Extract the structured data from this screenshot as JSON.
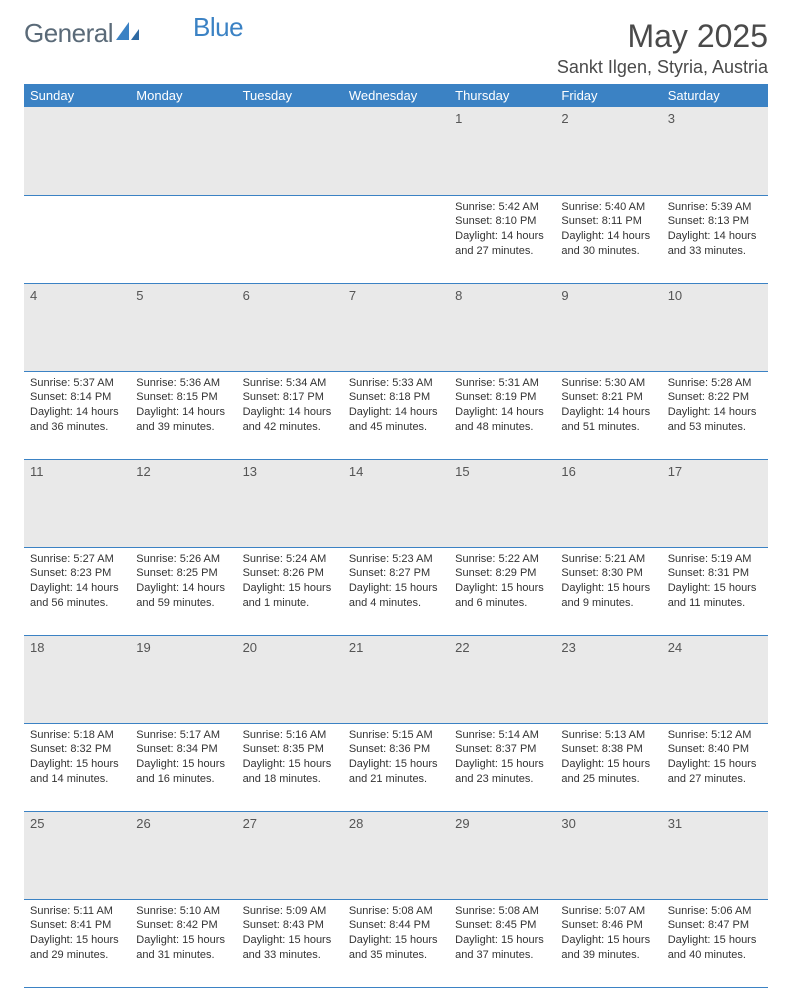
{
  "logo": {
    "text1": "General",
    "text2": "Blue"
  },
  "title": "May 2025",
  "location": "Sankt Ilgen, Styria, Austria",
  "colors": {
    "header_bg": "#3b82c4",
    "header_text": "#ffffff",
    "daynum_bg": "#e9e9e9",
    "border": "#3b82c4",
    "body_text": "#333333",
    "title_text": "#4a4a4a"
  },
  "weekdays": [
    "Sunday",
    "Monday",
    "Tuesday",
    "Wednesday",
    "Thursday",
    "Friday",
    "Saturday"
  ],
  "weeks": [
    [
      null,
      null,
      null,
      null,
      {
        "n": "1",
        "sr": "5:42 AM",
        "ss": "8:10 PM",
        "dl": "14 hours and 27 minutes."
      },
      {
        "n": "2",
        "sr": "5:40 AM",
        "ss": "8:11 PM",
        "dl": "14 hours and 30 minutes."
      },
      {
        "n": "3",
        "sr": "5:39 AM",
        "ss": "8:13 PM",
        "dl": "14 hours and 33 minutes."
      }
    ],
    [
      {
        "n": "4",
        "sr": "5:37 AM",
        "ss": "8:14 PM",
        "dl": "14 hours and 36 minutes."
      },
      {
        "n": "5",
        "sr": "5:36 AM",
        "ss": "8:15 PM",
        "dl": "14 hours and 39 minutes."
      },
      {
        "n": "6",
        "sr": "5:34 AM",
        "ss": "8:17 PM",
        "dl": "14 hours and 42 minutes."
      },
      {
        "n": "7",
        "sr": "5:33 AM",
        "ss": "8:18 PM",
        "dl": "14 hours and 45 minutes."
      },
      {
        "n": "8",
        "sr": "5:31 AM",
        "ss": "8:19 PM",
        "dl": "14 hours and 48 minutes."
      },
      {
        "n": "9",
        "sr": "5:30 AM",
        "ss": "8:21 PM",
        "dl": "14 hours and 51 minutes."
      },
      {
        "n": "10",
        "sr": "5:28 AM",
        "ss": "8:22 PM",
        "dl": "14 hours and 53 minutes."
      }
    ],
    [
      {
        "n": "11",
        "sr": "5:27 AM",
        "ss": "8:23 PM",
        "dl": "14 hours and 56 minutes."
      },
      {
        "n": "12",
        "sr": "5:26 AM",
        "ss": "8:25 PM",
        "dl": "14 hours and 59 minutes."
      },
      {
        "n": "13",
        "sr": "5:24 AM",
        "ss": "8:26 PM",
        "dl": "15 hours and 1 minute."
      },
      {
        "n": "14",
        "sr": "5:23 AM",
        "ss": "8:27 PM",
        "dl": "15 hours and 4 minutes."
      },
      {
        "n": "15",
        "sr": "5:22 AM",
        "ss": "8:29 PM",
        "dl": "15 hours and 6 minutes."
      },
      {
        "n": "16",
        "sr": "5:21 AM",
        "ss": "8:30 PM",
        "dl": "15 hours and 9 minutes."
      },
      {
        "n": "17",
        "sr": "5:19 AM",
        "ss": "8:31 PM",
        "dl": "15 hours and 11 minutes."
      }
    ],
    [
      {
        "n": "18",
        "sr": "5:18 AM",
        "ss": "8:32 PM",
        "dl": "15 hours and 14 minutes."
      },
      {
        "n": "19",
        "sr": "5:17 AM",
        "ss": "8:34 PM",
        "dl": "15 hours and 16 minutes."
      },
      {
        "n": "20",
        "sr": "5:16 AM",
        "ss": "8:35 PM",
        "dl": "15 hours and 18 minutes."
      },
      {
        "n": "21",
        "sr": "5:15 AM",
        "ss": "8:36 PM",
        "dl": "15 hours and 21 minutes."
      },
      {
        "n": "22",
        "sr": "5:14 AM",
        "ss": "8:37 PM",
        "dl": "15 hours and 23 minutes."
      },
      {
        "n": "23",
        "sr": "5:13 AM",
        "ss": "8:38 PM",
        "dl": "15 hours and 25 minutes."
      },
      {
        "n": "24",
        "sr": "5:12 AM",
        "ss": "8:40 PM",
        "dl": "15 hours and 27 minutes."
      }
    ],
    [
      {
        "n": "25",
        "sr": "5:11 AM",
        "ss": "8:41 PM",
        "dl": "15 hours and 29 minutes."
      },
      {
        "n": "26",
        "sr": "5:10 AM",
        "ss": "8:42 PM",
        "dl": "15 hours and 31 minutes."
      },
      {
        "n": "27",
        "sr": "5:09 AM",
        "ss": "8:43 PM",
        "dl": "15 hours and 33 minutes."
      },
      {
        "n": "28",
        "sr": "5:08 AM",
        "ss": "8:44 PM",
        "dl": "15 hours and 35 minutes."
      },
      {
        "n": "29",
        "sr": "5:08 AM",
        "ss": "8:45 PM",
        "dl": "15 hours and 37 minutes."
      },
      {
        "n": "30",
        "sr": "5:07 AM",
        "ss": "8:46 PM",
        "dl": "15 hours and 39 minutes."
      },
      {
        "n": "31",
        "sr": "5:06 AM",
        "ss": "8:47 PM",
        "dl": "15 hours and 40 minutes."
      }
    ]
  ],
  "labels": {
    "sunrise": "Sunrise: ",
    "sunset": "Sunset: ",
    "daylight": "Daylight: "
  }
}
